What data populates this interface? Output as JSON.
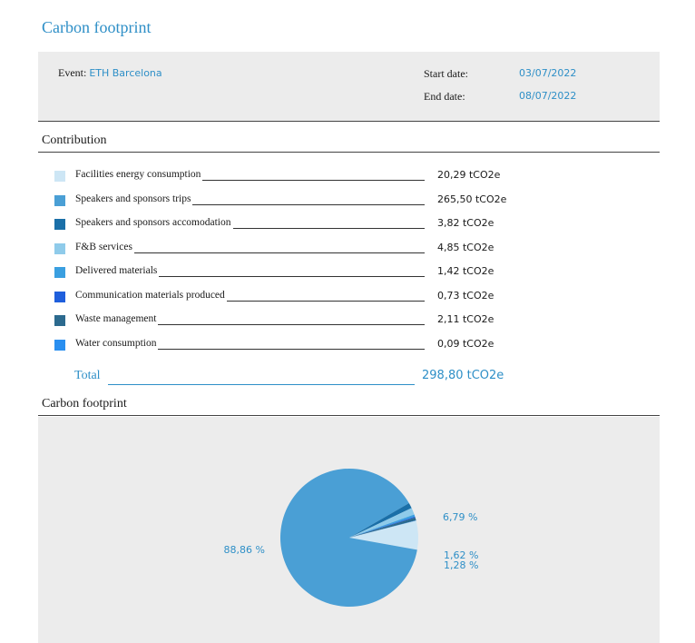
{
  "header": {
    "title": "Carbon footprint"
  },
  "event_info": {
    "event_label": "Event:",
    "event_value": "ETH Barcelona",
    "start_label": "Start date:",
    "start_value": "03/07/2022",
    "end_label": "End date:",
    "end_value": "08/07/2022"
  },
  "contribution": {
    "title": "Contribution",
    "items": [
      {
        "label": "Facilities energy consumption",
        "value": "20,29 tCO2e",
        "color": "#cde6f5"
      },
      {
        "label": "Speakers and sponsors trips",
        "value": "265,50 tCO2e",
        "color": "#4a9fd5"
      },
      {
        "label": "Speakers and sponsors accomodation",
        "value": "3,82 tCO2e",
        "color": "#1a6fa8"
      },
      {
        "label": "F&B services",
        "value": "4,85 tCO2e",
        "color": "#8fcbea"
      },
      {
        "label": "Delivered materials",
        "value": "1,42 tCO2e",
        "color": "#3a9fe0"
      },
      {
        "label": "Communication materials produced",
        "value": "0,73 tCO2e",
        "color": "#1f5fdc"
      },
      {
        "label": "Waste management",
        "value": "2,11 tCO2e",
        "color": "#2c6a8e"
      },
      {
        "label": "Water consumption",
        "value": "0,09 tCO2e",
        "color": "#2a8ff0"
      }
    ],
    "total_label": "Total",
    "total_value": "298,80 tCO2e"
  },
  "footprint_section": {
    "title": "Carbon footprint"
  },
  "chart_data": {
    "type": "pie",
    "slices": [
      {
        "name": "Facilities energy consumption",
        "value": 20.29,
        "label": "6,79 %"
      },
      {
        "name": "Speakers and sponsors trips",
        "value": 265.5,
        "label": "88,86 %"
      },
      {
        "name": "Speakers and sponsors accomodation",
        "value": 3.82,
        "label": "1,28 %"
      },
      {
        "name": "F&B services",
        "value": 4.85,
        "label": "1,62 %"
      },
      {
        "name": "Delivered materials",
        "value": 1.42,
        "label": ""
      },
      {
        "name": "Communication materials produced",
        "value": 0.73,
        "label": ""
      },
      {
        "name": "Waste management",
        "value": 2.11,
        "label": ""
      },
      {
        "name": "Water consumption",
        "value": 0.09,
        "label": ""
      }
    ],
    "colors": [
      "#cde6f5",
      "#4a9fd5",
      "#1a6fa8",
      "#8fcbea",
      "#3a9fe0",
      "#1f5fdc",
      "#2c6a8e",
      "#2a8ff0"
    ]
  }
}
